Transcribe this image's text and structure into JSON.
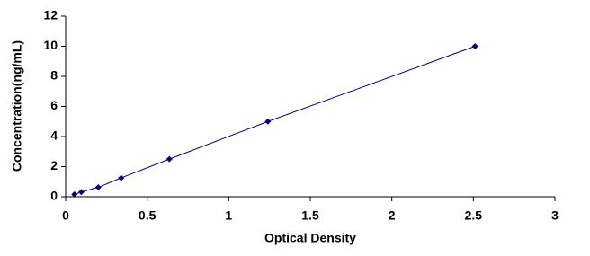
{
  "chart_data": {
    "type": "line",
    "x_label": "Optical Density",
    "y_label": "Concentration(ng/mL)",
    "x": [
      0.054,
      0.096,
      0.2,
      0.34,
      0.636,
      1.24,
      2.51
    ],
    "values": [
      0.156,
      0.312,
      0.625,
      1.25,
      2.5,
      5,
      10
    ],
    "color": "#000080",
    "marker": "diamond",
    "xlim": [
      0,
      3
    ],
    "xticks": [
      0,
      0.5,
      1,
      1.5,
      2,
      2.5,
      3
    ],
    "ylim": [
      0,
      12
    ],
    "yticks": [
      0,
      2,
      4,
      6,
      8,
      10,
      12
    ],
    "grid": false
  }
}
